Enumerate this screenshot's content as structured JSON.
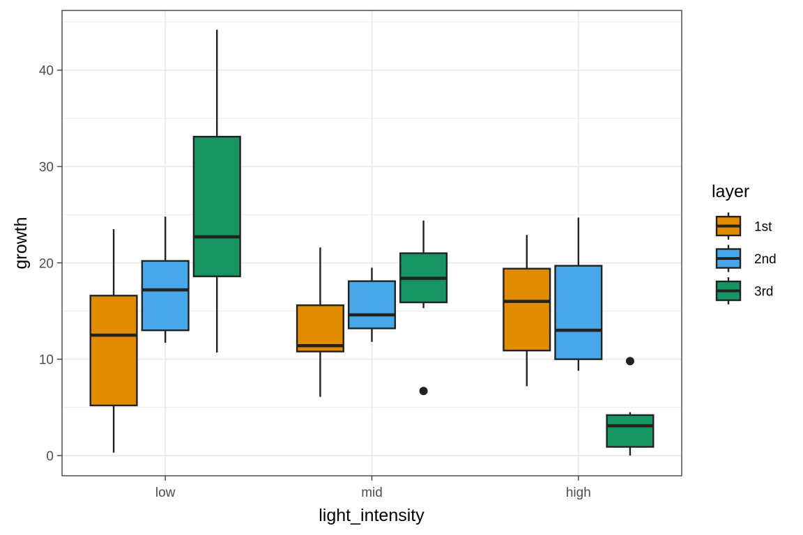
{
  "chart_data": {
    "type": "box",
    "title": "",
    "xlabel": "light_intensity",
    "ylabel": "growth",
    "categories": [
      "low",
      "mid",
      "high"
    ],
    "ylim": [
      -2.1,
      46.2
    ],
    "yticks": [
      0,
      10,
      20,
      30,
      40
    ],
    "grid": true,
    "legend": {
      "title": "layer",
      "position": "right"
    },
    "series": [
      {
        "name": "1st",
        "color": "#E08B00",
        "boxes": [
          {
            "category": "low",
            "min": 0.3,
            "q1": 5.2,
            "median": 12.5,
            "q3": 16.6,
            "max": 23.5,
            "outliers": []
          },
          {
            "category": "mid",
            "min": 6.1,
            "q1": 10.8,
            "median": 11.4,
            "q3": 15.6,
            "max": 21.6,
            "outliers": []
          },
          {
            "category": "high",
            "min": 7.2,
            "q1": 10.9,
            "median": 16.0,
            "q3": 19.4,
            "max": 22.9,
            "outliers": []
          }
        ]
      },
      {
        "name": "2nd",
        "color": "#47A7E8",
        "boxes": [
          {
            "category": "low",
            "min": 11.7,
            "q1": 13.0,
            "median": 17.2,
            "q3": 20.2,
            "max": 24.8,
            "outliers": []
          },
          {
            "category": "mid",
            "min": 11.8,
            "q1": 13.2,
            "median": 14.6,
            "q3": 18.1,
            "max": 19.5,
            "outliers": []
          },
          {
            "category": "high",
            "min": 8.8,
            "q1": 10.0,
            "median": 13.0,
            "q3": 19.7,
            "max": 24.7,
            "outliers": []
          }
        ]
      },
      {
        "name": "3rd",
        "color": "#169463",
        "boxes": [
          {
            "category": "low",
            "min": 10.7,
            "q1": 18.6,
            "median": 22.7,
            "q3": 33.1,
            "max": 44.2,
            "outliers": []
          },
          {
            "category": "mid",
            "min": 15.3,
            "q1": 15.9,
            "median": 18.4,
            "q3": 21.0,
            "max": 24.4,
            "outliers": [
              6.7
            ]
          },
          {
            "category": "high",
            "min": 0.0,
            "q1": 0.9,
            "median": 3.1,
            "q3": 4.2,
            "max": 4.5,
            "outliers": [
              9.8
            ]
          }
        ]
      }
    ]
  }
}
